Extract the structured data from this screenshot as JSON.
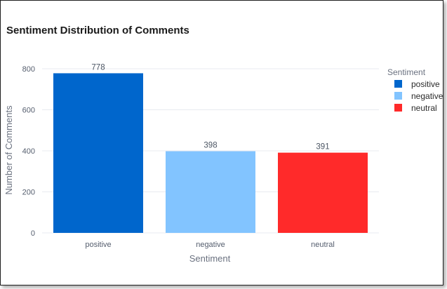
{
  "chart_data": {
    "type": "bar",
    "title": "Sentiment Distribution of Comments",
    "xlabel": "Sentiment",
    "ylabel": "Number of Comments",
    "categories": [
      "positive",
      "negative",
      "neutral"
    ],
    "values": [
      778,
      398,
      391
    ],
    "colors": [
      "#0066cc",
      "#82c4ff",
      "#ff2a2a"
    ],
    "ylim": [
      0,
      800
    ],
    "yticks": [
      0,
      200,
      400,
      600,
      800
    ],
    "grid": true,
    "legend": {
      "title": "Sentiment",
      "placement": "right",
      "items": [
        "positive",
        "negative",
        "neutral"
      ]
    }
  }
}
